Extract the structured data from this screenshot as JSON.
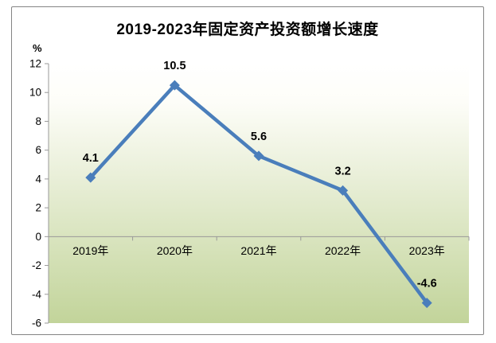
{
  "chart_data": {
    "type": "line",
    "title": "2019-2023年固定资产投资额增长速度",
    "ylabel": "%",
    "categories": [
      "2019年",
      "2020年",
      "2021年",
      "2022年",
      "2023年"
    ],
    "values": [
      4.1,
      10.5,
      5.6,
      3.2,
      -4.6
    ],
    "data_labels": [
      "4.1",
      "10.5",
      "5.6",
      "3.2",
      "-4.6"
    ],
    "ylim": [
      -6,
      12
    ],
    "ytick_step": 2,
    "ytick_labels": [
      "-6",
      "-4",
      "-2",
      "0",
      "2",
      "4",
      "6",
      "8",
      "10",
      "12"
    ],
    "grid": false,
    "legend": false,
    "line_color": "#4a7ebb",
    "marker": "diamond",
    "axis_color": "#999999",
    "plot_bg_gradient": [
      "#ffffff",
      "#fdfdf8",
      "#c2d49a"
    ],
    "frame_border_color": "#848484"
  }
}
